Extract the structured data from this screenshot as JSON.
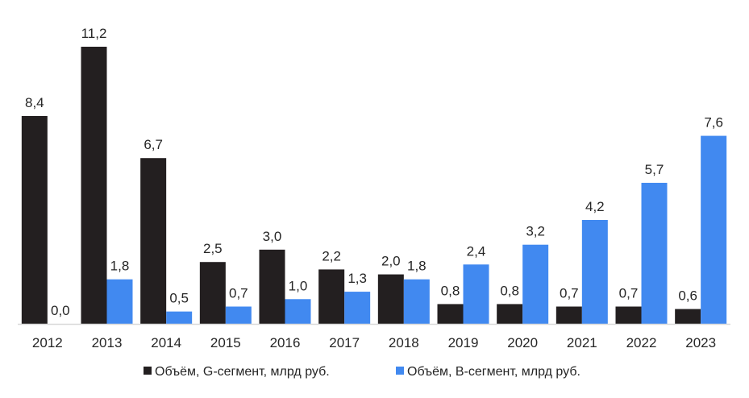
{
  "chart_data": {
    "type": "bar",
    "categories": [
      "2012",
      "2013",
      "2014",
      "2015",
      "2016",
      "2017",
      "2018",
      "2019",
      "2020",
      "2021",
      "2022",
      "2023"
    ],
    "series": [
      {
        "name": "Объём, G-сегмент, млрд руб.",
        "color": "#231f20",
        "values": [
          8.4,
          11.2,
          6.7,
          2.5,
          3.0,
          2.2,
          2.0,
          0.8,
          0.8,
          0.7,
          0.7,
          0.6
        ],
        "labels": [
          "8,4",
          "11,2",
          "6,7",
          "2,5",
          "3,0",
          "2,2",
          "2,0",
          "0,8",
          "0,8",
          "0,7",
          "0,7",
          "0,6"
        ]
      },
      {
        "name": "Объём, B-сегмент, млрд руб.",
        "color": "#4189f0",
        "values": [
          0.0,
          1.8,
          0.5,
          0.7,
          1.0,
          1.3,
          1.8,
          2.4,
          3.2,
          4.2,
          5.7,
          7.6
        ],
        "labels": [
          "0,0",
          "1,8",
          "0,5",
          "0,7",
          "1,0",
          "1,3",
          "1,8",
          "2,4",
          "3,2",
          "4,2",
          "5,7",
          "7,6"
        ]
      }
    ],
    "title": "",
    "xlabel": "",
    "ylabel": "",
    "ylim": [
      0,
      11.2
    ],
    "grid": false,
    "legend_position": "bottom",
    "axis_color": "#d9d9d9"
  }
}
